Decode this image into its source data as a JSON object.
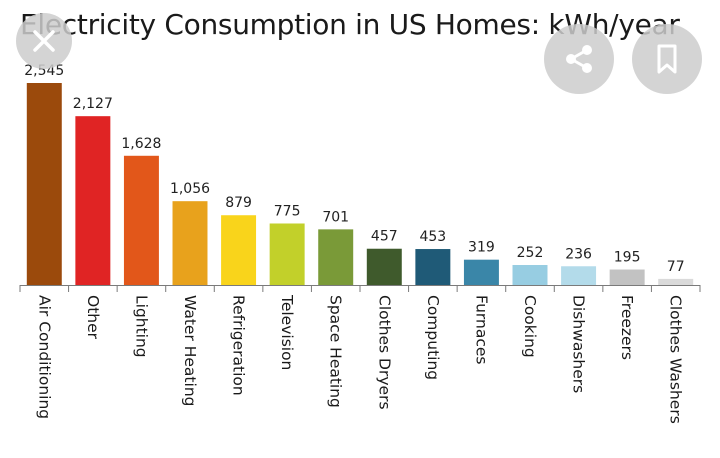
{
  "chart_data": {
    "type": "bar",
    "title": "Electricity Consumption in US Homes: kWh/year",
    "categories": [
      "Air Conditioning",
      "Other",
      "Lighting",
      "Water Heating",
      "Refrigeration",
      "Television",
      "Space Heating",
      "Clothes Dryers",
      "Computing",
      "Furnaces",
      "Cooking",
      "Dishwashers",
      "Freezers",
      "Clothes Washers"
    ],
    "values": [
      2545,
      2127,
      1628,
      1056,
      879,
      775,
      701,
      457,
      453,
      319,
      252,
      236,
      195,
      77
    ],
    "value_labels": [
      "2,545",
      "2,127",
      "1,628",
      "1,056",
      "879",
      "775",
      "701",
      "457",
      "453",
      "319",
      "252",
      "236",
      "195",
      "77"
    ],
    "colors": [
      "#9b4a0c",
      "#e02424",
      "#e2571a",
      "#e8a21c",
      "#f9d41b",
      "#c2d02a",
      "#7a9a38",
      "#3f5a2c",
      "#1f5a77",
      "#3a86a8",
      "#97cde2",
      "#b3dbea",
      "#c2c2c2",
      "#dadada"
    ],
    "ylim": [
      0,
      2545
    ],
    "xlabel": "",
    "ylabel": "",
    "grid": false,
    "legend": "none"
  },
  "overlay": {
    "close_icon": "close-icon",
    "share_icon": "share-icon",
    "bookmark_icon": "bookmark-icon"
  }
}
